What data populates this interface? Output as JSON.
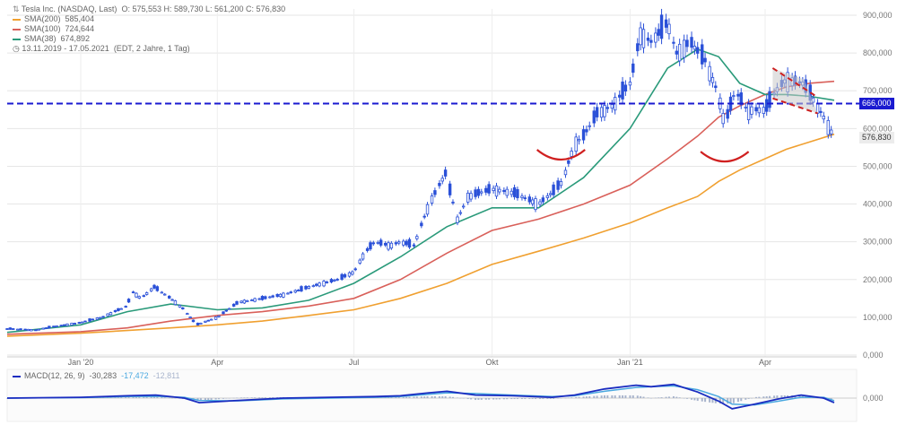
{
  "header": {
    "title": "Tesla Inc. (NASDAQ, Last)",
    "ohlc": "O: 575,553  H: 589,730  L: 561,200  C: 576,830",
    "range": "13.11.2019 - 17.05.2021",
    "range_note": "(EDT, 2 Jahre, 1 Tag)"
  },
  "legend": [
    {
      "label": "SMA(200)",
      "value": "585,404",
      "color": "#f0a030"
    },
    {
      "label": "SMA(100)",
      "value": "724,644",
      "color": "#d9605a"
    },
    {
      "label": "SMA(38)",
      "value": "674,892",
      "color": "#2a9a7a"
    }
  ],
  "macd_legend": {
    "label": "MACD(12, 26, 9)",
    "v1": "-30,283",
    "v2": "-17,472",
    "v3": "-12,811"
  },
  "tags": {
    "level": "666,000",
    "last": "576,830"
  },
  "colors": {
    "candles": "#2a50d8",
    "level_line": "#1a1ad0",
    "sma200": "#f0a030",
    "sma100": "#d9605a",
    "sma38": "#2a9a7a",
    "macd": "#1a2cc0",
    "signal": "#4aa8e0",
    "hist": "#a8b4cc",
    "arc": "#d02020",
    "pattern": "#cc2020"
  },
  "chart_data": [
    {
      "type": "line",
      "title": "Tesla Inc. (NASDAQ, Last)",
      "x_ticks": [
        "Jan '20",
        "Apr",
        "Jul",
        "Okt",
        "Jan '21",
        "Apr"
      ],
      "y_ticks": [
        "900,000",
        "800,000",
        "700,000",
        "600,000",
        "500,000",
        "400,000",
        "300,000",
        "200,000",
        "100,000",
        "0,000"
      ],
      "ylim": [
        0,
        900
      ],
      "y_tick_values": [
        900,
        800,
        700,
        600,
        500,
        400,
        300,
        200,
        100,
        0
      ],
      "grid": true,
      "x_range": [
        "2019-11-13",
        "2021-05-17"
      ],
      "x_tick_dates": [
        "2020-01-01",
        "2020-04-01",
        "2020-07-01",
        "2020-10-01",
        "2021-01-01",
        "2021-04-01"
      ],
      "price_dates": [
        "2019-11-13",
        "2019-12-01",
        "2019-12-15",
        "2020-01-01",
        "2020-01-15",
        "2020-02-01",
        "2020-02-04",
        "2020-02-10",
        "2020-02-19",
        "2020-03-01",
        "2020-03-10",
        "2020-03-18",
        "2020-04-01",
        "2020-04-15",
        "2020-05-01",
        "2020-05-15",
        "2020-06-01",
        "2020-06-10",
        "2020-06-20",
        "2020-07-01",
        "2020-07-08",
        "2020-07-15",
        "2020-07-25",
        "2020-08-01",
        "2020-08-10",
        "2020-08-20",
        "2020-08-31",
        "2020-09-08",
        "2020-09-15",
        "2020-10-01",
        "2020-10-15",
        "2020-11-01",
        "2020-11-10",
        "2020-11-17",
        "2020-11-25",
        "2020-12-01",
        "2020-12-10",
        "2020-12-20",
        "2021-01-01",
        "2021-01-08",
        "2021-01-15",
        "2021-01-26",
        "2021-02-01",
        "2021-02-10",
        "2021-02-20",
        "2021-03-01",
        "2021-03-05",
        "2021-03-12",
        "2021-03-20",
        "2021-04-01",
        "2021-04-08",
        "2021-04-15",
        "2021-04-26",
        "2021-05-01",
        "2021-05-10",
        "2021-05-17"
      ],
      "price": [
        70,
        66,
        76,
        86,
        100,
        130,
        170,
        150,
        180,
        150,
        120,
        80,
        100,
        140,
        150,
        160,
        180,
        190,
        200,
        220,
        270,
        300,
        290,
        300,
        290,
        400,
        480,
        360,
        420,
        440,
        430,
        400,
        430,
        460,
        560,
        580,
        640,
        660,
        720,
        850,
        830,
        880,
        800,
        830,
        780,
        690,
        610,
        700,
        650,
        650,
        700,
        730,
        720,
        690,
        630,
        577
      ],
      "sma_dates": [
        "2019-11-13",
        "2020-01-01",
        "2020-02-01",
        "2020-03-01",
        "2020-04-01",
        "2020-05-01",
        "2020-06-01",
        "2020-07-01",
        "2020-08-01",
        "2020-09-01",
        "2020-10-01",
        "2020-11-01",
        "2020-12-01",
        "2021-01-01",
        "2021-01-26",
        "2021-02-15",
        "2021-03-01",
        "2021-03-15",
        "2021-04-01",
        "2021-04-15",
        "2021-05-01",
        "2021-05-17"
      ],
      "series": [
        {
          "name": "SMA(200)",
          "values": [
            50,
            58,
            65,
            72,
            80,
            90,
            105,
            120,
            150,
            190,
            240,
            275,
            310,
            350,
            390,
            420,
            460,
            490,
            520,
            545,
            565,
            585
          ]
        },
        {
          "name": "SMA(100)",
          "values": [
            55,
            62,
            72,
            90,
            105,
            115,
            130,
            150,
            200,
            270,
            330,
            360,
            400,
            450,
            520,
            580,
            630,
            660,
            690,
            710,
            720,
            725
          ]
        },
        {
          "name": "SMA(38)",
          "values": [
            60,
            80,
            115,
            135,
            120,
            125,
            145,
            190,
            260,
            340,
            390,
            390,
            470,
            600,
            760,
            810,
            790,
            720,
            690,
            690,
            685,
            675
          ]
        }
      ],
      "horizontal_line": 666
    },
    {
      "type": "line",
      "title": "MACD(12, 26, 9)",
      "y_ticks": [
        "0,000"
      ],
      "grid": true,
      "x_range": [
        "2019-11-13",
        "2021-05-17"
      ],
      "macd_dates": [
        "2019-11-13",
        "2020-01-01",
        "2020-02-01",
        "2020-02-20",
        "2020-03-10",
        "2020-03-20",
        "2020-04-15",
        "2020-05-15",
        "2020-06-15",
        "2020-07-15",
        "2020-08-01",
        "2020-08-20",
        "2020-09-01",
        "2020-09-20",
        "2020-10-15",
        "2020-11-10",
        "2020-11-25",
        "2020-12-15",
        "2021-01-05",
        "2021-01-15",
        "2021-01-30",
        "2021-02-15",
        "2021-03-01",
        "2021-03-10",
        "2021-03-25",
        "2021-04-10",
        "2021-04-25",
        "2021-05-10",
        "2021-05-17"
      ],
      "series": [
        {
          "name": "MACD",
          "values": [
            0,
            5,
            15,
            20,
            0,
            -30,
            -15,
            0,
            5,
            10,
            15,
            35,
            45,
            20,
            15,
            5,
            20,
            60,
            85,
            75,
            90,
            40,
            -20,
            -70,
            -40,
            -5,
            20,
            0,
            -30
          ]
        },
        {
          "name": "Signal",
          "values": [
            0,
            3,
            10,
            12,
            5,
            -15,
            -18,
            -5,
            0,
            5,
            10,
            25,
            35,
            30,
            20,
            10,
            15,
            45,
            70,
            75,
            80,
            55,
            10,
            -40,
            -45,
            -20,
            5,
            5,
            -17
          ]
        }
      ],
      "macd_ylim": [
        -100,
        100
      ]
    }
  ]
}
